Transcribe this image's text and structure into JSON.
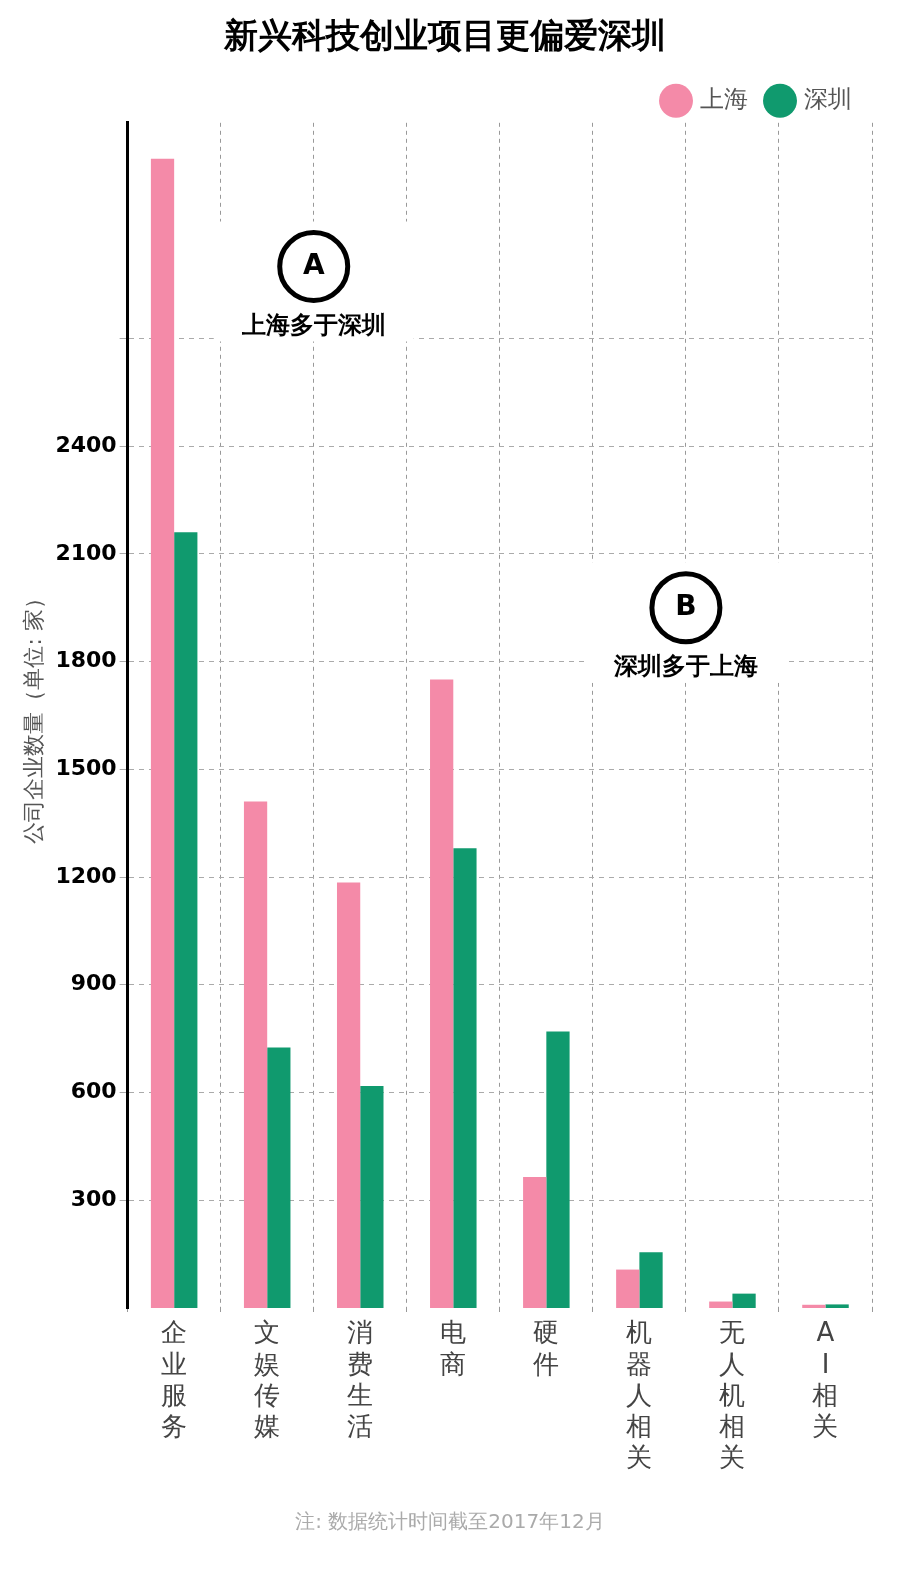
{
  "chart_data": {
    "type": "bar",
    "title": "新兴科技创业项目更偏爱深圳",
    "ylabel": "公司企业数量（单位: 家）",
    "categories": [
      "企业服务",
      "文娱传媒",
      "消费生活",
      "电商",
      "硬件",
      "机器人相关",
      "无人机相关",
      "AI相关"
    ],
    "series": [
      {
        "name": "上海",
        "color": "#f48aa8",
        "values": [
          3200,
          1410,
          1185,
          1750,
          365,
          107,
          18,
          9
        ]
      },
      {
        "name": "深圳",
        "color": "#109a6e",
        "values": [
          2160,
          725,
          618,
          1280,
          770,
          155,
          40,
          10
        ]
      }
    ],
    "ylim": [
      0,
      3300
    ],
    "yticks": [
      300,
      600,
      900,
      1200,
      1500,
      1800,
      2100,
      2400,
      {
        "value": 2700,
        "label": null
      }
    ],
    "grid": true,
    "legend": "top right",
    "annotations": [
      "A",
      "上海多于深圳",
      "B",
      "深圳多于上海",
      "注: 数据统计时间截至2017年12月"
    ]
  }
}
